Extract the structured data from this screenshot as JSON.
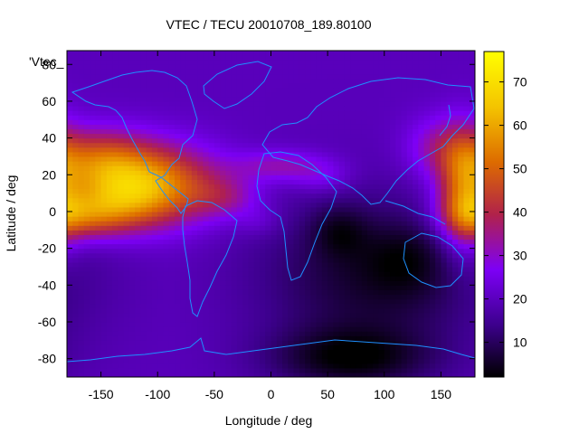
{
  "chart_data": {
    "type": "heatmap",
    "title": "VTEC / TECU 20010708_189.80100",
    "xlabel": "Longitude / deg",
    "ylabel": "Latitude / deg",
    "xlim": [
      -180,
      180
    ],
    "ylim": [
      -90,
      87.5
    ],
    "xticks": [
      -150,
      -100,
      -50,
      0,
      50,
      100,
      150
    ],
    "yticks": [
      -80,
      -60,
      -40,
      -20,
      0,
      20,
      40,
      60,
      80
    ],
    "key_label": "'Vtec_",
    "colorbar": {
      "range": [
        2,
        77
      ],
      "ticks": [
        10,
        20,
        30,
        40,
        50,
        60,
        70
      ]
    },
    "colormap": [
      "#000000",
      "#3c008c",
      "#7d00f6",
      "#b1224a",
      "#dd6b00",
      "#f4c400",
      "#ffff00"
    ],
    "lon_step": 5,
    "lat_step": 2.5,
    "value_model": {
      "background": 20,
      "cells": [
        {
          "lon": -110,
          "lat": 15,
          "slon": 42,
          "slat": 15,
          "amp": 38
        },
        {
          "lon": -130,
          "lat": 5,
          "slon": 28,
          "slat": 11,
          "amp": 10
        },
        {
          "lon": -170,
          "lat": -2,
          "slon": 28,
          "slat": 9,
          "amp": 24
        },
        {
          "lon": -155,
          "lat": 28,
          "slon": 30,
          "slat": 12,
          "amp": 20
        },
        {
          "lon": -40,
          "lat": 8,
          "slon": 22,
          "slat": 8,
          "amp": 10
        },
        {
          "lon": 170,
          "lat": 10,
          "slon": 15,
          "slat": 22,
          "amp": 24
        },
        {
          "lon": 150,
          "lat": 35,
          "slon": 22,
          "slat": 12,
          "amp": 12
        },
        {
          "lon": 10,
          "lat": 25,
          "slon": 30,
          "slat": 6,
          "amp": 12
        },
        {
          "lon": 45,
          "lat": 18,
          "slon": 18,
          "slat": 6,
          "amp": 6
        },
        {
          "lon": -10,
          "lat": -5,
          "slon": 14,
          "slat": 6,
          "amp": 4
        },
        {
          "lon": 90,
          "lat": -35,
          "slon": 70,
          "slat": 30,
          "amp": -14
        },
        {
          "lon": 70,
          "lat": -80,
          "slon": 50,
          "slat": 12,
          "amp": -15
        },
        {
          "lon": 60,
          "lat": -10,
          "slon": 18,
          "slat": 10,
          "amp": -8
        },
        {
          "lon": 120,
          "lat": -25,
          "slon": 25,
          "slat": 14,
          "amp": -6
        }
      ]
    },
    "coastline_color": "#1e90ff"
  }
}
